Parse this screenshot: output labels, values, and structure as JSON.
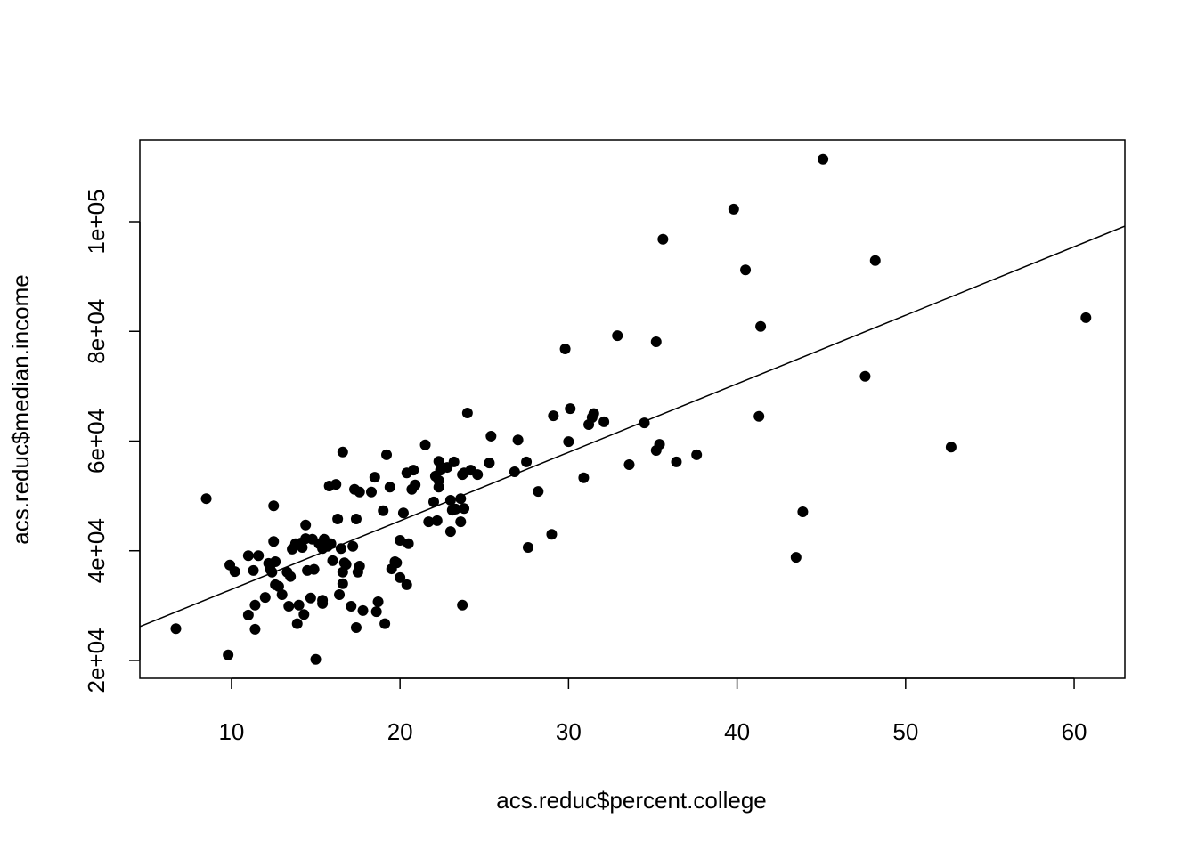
{
  "chart_data": {
    "type": "scatter",
    "x_label": "acs.reduc$percent.college",
    "y_label": "acs.reduc$median.income",
    "color": "#000000",
    "xlim": [
      4.56,
      63.01
    ],
    "ylim": [
      16750,
      114930
    ],
    "xticks": [
      10,
      20,
      30,
      40,
      50,
      60
    ],
    "yticks": [
      {
        "value": 20000,
        "label": "2e+04"
      },
      {
        "value": 40000,
        "label": "4e+04"
      },
      {
        "value": 60000,
        "label": "6e+04"
      },
      {
        "value": 80000,
        "label": "8e+04"
      },
      {
        "value": 100000,
        "label": "1e+05"
      }
    ],
    "abline": {
      "intercept": 20469,
      "slope": 1249.3
    },
    "x": [
      6.7,
      8.5,
      9.8,
      9.9,
      10.2,
      11.0,
      11.0,
      11.3,
      11.4,
      11.4,
      11.6,
      12.0,
      12.2,
      12.3,
      12.4,
      12.5,
      12.5,
      12.6,
      12.6,
      12.8,
      13.0,
      13.3,
      13.4,
      13.5,
      13.6,
      13.8,
      13.9,
      14.0,
      14.1,
      14.2,
      14.3,
      14.4,
      14.4,
      14.5,
      14.7,
      14.8,
      14.9,
      15.0,
      15.2,
      15.4,
      15.4,
      15.4,
      15.5,
      15.7,
      15.8,
      15.9,
      16.0,
      16.2,
      16.3,
      16.4,
      16.5,
      16.6,
      16.6,
      16.6,
      16.7,
      16.8,
      17.1,
      17.2,
      17.3,
      17.4,
      17.4,
      17.5,
      17.6,
      17.6,
      17.8,
      18.3,
      18.5,
      18.6,
      18.7,
      19.0,
      19.1,
      19.2,
      19.4,
      19.5,
      19.7,
      19.8,
      20.0,
      20.0,
      20.2,
      20.4,
      20.5,
      20.4,
      20.7,
      20.8,
      20.9,
      21.5,
      21.7,
      22.0,
      22.1,
      22.2,
      22.3,
      22.3,
      22.3,
      22.4,
      22.8,
      23.0,
      23.1,
      23.0,
      23.2,
      23.3,
      23.6,
      23.6,
      23.7,
      23.8,
      23.8,
      23.7,
      24.0,
      24.2,
      24.6,
      25.3,
      25.4,
      26.8,
      27.0,
      27.5,
      27.6,
      28.2,
      29.0,
      29.1,
      29.8,
      30.0,
      30.1,
      30.9,
      31.2,
      31.4,
      31.5,
      32.1,
      32.9,
      33.6,
      34.5,
      35.2,
      35.2,
      35.4,
      35.6,
      36.4,
      37.6,
      39.8,
      40.5,
      41.3,
      41.4,
      43.5,
      43.9,
      45.1,
      47.6,
      48.2,
      52.7,
      60.7
    ],
    "y": [
      25800,
      49500,
      21000,
      37400,
      36200,
      39100,
      28300,
      36400,
      30100,
      25700,
      39100,
      31500,
      37700,
      36600,
      36100,
      41700,
      48200,
      38000,
      33800,
      33500,
      32000,
      36100,
      29900,
      35300,
      40300,
      41300,
      26700,
      30100,
      41400,
      40600,
      28400,
      44700,
      42200,
      36400,
      31400,
      42100,
      36600,
      20200,
      41300,
      30400,
      31000,
      40400,
      42100,
      40800,
      51800,
      41300,
      38200,
      52100,
      45800,
      32000,
      40400,
      36100,
      34000,
      58000,
      37800,
      37500,
      29900,
      40800,
      51200,
      45800,
      26000,
      36100,
      37200,
      50700,
      29100,
      50700,
      53400,
      28900,
      30700,
      47300,
      26700,
      57500,
      51600,
      36700,
      38000,
      37800,
      41900,
      35100,
      46900,
      33800,
      41300,
      54200,
      51200,
      54700,
      52000,
      59300,
      45300,
      48900,
      53600,
      45500,
      56300,
      51600,
      52800,
      54700,
      55200,
      49200,
      47400,
      43500,
      56200,
      47600,
      45300,
      49500,
      53900,
      54200,
      47700,
      30100,
      65100,
      54700,
      53900,
      56000,
      60900,
      54400,
      60200,
      56200,
      40600,
      50800,
      43000,
      64600,
      76800,
      59900,
      65900,
      53300,
      63000,
      64300,
      65000,
      63500,
      79200,
      55700,
      63300,
      78100,
      58300,
      59400,
      96800,
      56200,
      57500,
      102300,
      91200,
      64500,
      80900,
      38800,
      47100,
      111400,
      71800,
      92900,
      58900,
      82500
    ]
  }
}
